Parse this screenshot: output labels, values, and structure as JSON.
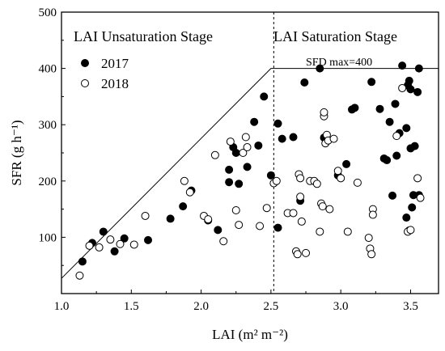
{
  "chart_data": {
    "type": "scatter",
    "xlabel": "LAI (m² m⁻²)",
    "ylabel": "SFR (g h⁻¹)",
    "xlim": [
      1.0,
      3.7
    ],
    "ylim": [
      0,
      500
    ],
    "x_ticks": [
      1.0,
      1.5,
      2.0,
      2.5,
      3.0,
      3.5
    ],
    "x_tick_labels": [
      "1.0",
      "1.5",
      "2.0",
      "2.5",
      "3.0",
      "3.5"
    ],
    "y_ticks": [
      100,
      200,
      300,
      400,
      500
    ],
    "y_tick_labels": [
      "100",
      "200",
      "300",
      "400",
      "500"
    ],
    "grid": false,
    "legend_position": "top-left",
    "stage_labels": {
      "unsaturation": "LAI Unsaturation Stage",
      "saturation": "LAI Saturation Stage"
    },
    "annotation": {
      "text": "SFD max=400"
    },
    "boundary": {
      "line_points": [
        [
          1.0,
          27
        ],
        [
          2.5,
          400
        ],
        [
          3.7,
          400
        ]
      ],
      "split_x": 2.52
    },
    "series": [
      {
        "name": "2017",
        "marker": "filled",
        "color": "#000000",
        "points": [
          [
            1.15,
            57
          ],
          [
            1.22,
            90
          ],
          [
            1.3,
            110
          ],
          [
            1.38,
            75
          ],
          [
            1.45,
            98
          ],
          [
            1.62,
            95
          ],
          [
            1.78,
            133
          ],
          [
            1.87,
            155
          ],
          [
            1.93,
            183
          ],
          [
            2.05,
            130
          ],
          [
            2.12,
            113
          ],
          [
            2.2,
            220
          ],
          [
            2.2,
            198
          ],
          [
            2.23,
            260
          ],
          [
            2.25,
            250
          ],
          [
            2.27,
            195
          ],
          [
            2.33,
            225
          ],
          [
            2.38,
            305
          ],
          [
            2.41,
            263
          ],
          [
            2.45,
            350
          ],
          [
            2.5,
            210
          ],
          [
            2.55,
            302
          ],
          [
            2.58,
            275
          ],
          [
            2.55,
            117
          ],
          [
            2.66,
            278
          ],
          [
            2.71,
            165
          ],
          [
            2.74,
            375
          ],
          [
            2.85,
            400
          ],
          [
            2.88,
            277
          ],
          [
            2.98,
            210
          ],
          [
            3.04,
            230
          ],
          [
            3.08,
            327
          ],
          [
            3.1,
            330
          ],
          [
            3.22,
            376
          ],
          [
            3.28,
            328
          ],
          [
            3.31,
            240
          ],
          [
            3.33,
            237
          ],
          [
            3.35,
            305
          ],
          [
            3.37,
            174
          ],
          [
            3.39,
            337
          ],
          [
            3.4,
            245
          ],
          [
            3.42,
            285
          ],
          [
            3.44,
            405
          ],
          [
            3.47,
            294
          ],
          [
            3.48,
            370
          ],
          [
            3.49,
            378
          ],
          [
            3.5,
            258
          ],
          [
            3.5,
            363
          ],
          [
            3.51,
            153
          ],
          [
            3.52,
            175
          ],
          [
            3.53,
            262
          ],
          [
            3.55,
            358
          ],
          [
            3.56,
            400
          ],
          [
            3.56,
            175
          ],
          [
            3.49,
            112
          ],
          [
            3.47,
            135
          ]
        ]
      },
      {
        "name": "2018",
        "marker": "open",
        "color": "#000000",
        "points": [
          [
            1.13,
            32
          ],
          [
            1.2,
            85
          ],
          [
            1.27,
            82
          ],
          [
            1.35,
            96
          ],
          [
            1.42,
            88
          ],
          [
            1.52,
            87
          ],
          [
            1.6,
            138
          ],
          [
            1.88,
            200
          ],
          [
            1.92,
            180
          ],
          [
            2.02,
            138
          ],
          [
            2.05,
            132
          ],
          [
            2.1,
            246
          ],
          [
            2.16,
            93
          ],
          [
            2.21,
            270
          ],
          [
            2.25,
            148
          ],
          [
            2.27,
            122
          ],
          [
            2.3,
            250
          ],
          [
            2.32,
            278
          ],
          [
            2.33,
            260
          ],
          [
            2.42,
            120
          ],
          [
            2.47,
            152
          ],
          [
            2.52,
            196
          ],
          [
            2.54,
            200
          ],
          [
            2.62,
            143
          ],
          [
            2.66,
            143
          ],
          [
            2.68,
            75
          ],
          [
            2.69,
            70
          ],
          [
            2.7,
            212
          ],
          [
            2.71,
            205
          ],
          [
            2.71,
            172
          ],
          [
            2.72,
            128
          ],
          [
            2.75,
            72
          ],
          [
            2.78,
            200
          ],
          [
            2.81,
            200
          ],
          [
            2.83,
            195
          ],
          [
            2.85,
            110
          ],
          [
            2.86,
            160
          ],
          [
            2.87,
            155
          ],
          [
            2.88,
            315
          ],
          [
            2.88,
            322
          ],
          [
            2.89,
            267
          ],
          [
            2.9,
            282
          ],
          [
            2.91,
            272
          ],
          [
            2.92,
            150
          ],
          [
            2.95,
            275
          ],
          [
            2.98,
            218
          ],
          [
            3.0,
            205
          ],
          [
            3.05,
            110
          ],
          [
            3.12,
            197
          ],
          [
            3.2,
            99
          ],
          [
            3.21,
            80
          ],
          [
            3.22,
            70
          ],
          [
            3.23,
            150
          ],
          [
            3.23,
            140
          ],
          [
            3.4,
            280
          ],
          [
            3.44,
            365
          ],
          [
            3.48,
            110
          ],
          [
            3.5,
            113
          ],
          [
            3.55,
            205
          ],
          [
            3.57,
            170
          ]
        ]
      }
    ]
  }
}
